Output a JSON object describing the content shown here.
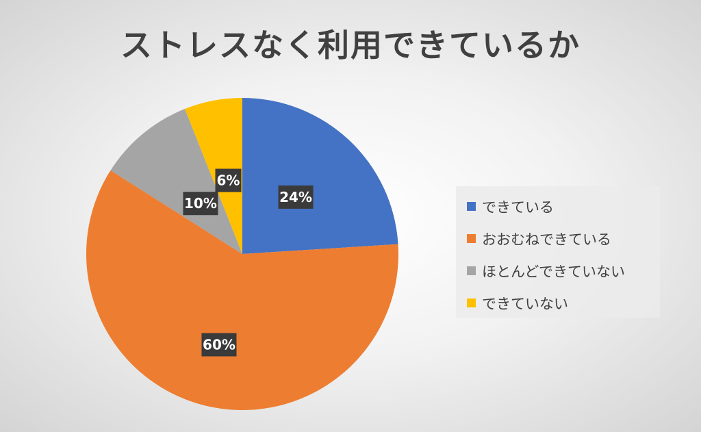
{
  "chart_data": {
    "type": "pie",
    "title": "ストレスなく利用できているか",
    "start_angle_deg": 0,
    "direction": "clockwise",
    "legend_position": "right",
    "slices": [
      {
        "label": "できている",
        "value": 24,
        "value_label": "24%",
        "color": "#4472C4"
      },
      {
        "label": "おおむねできている",
        "value": 60,
        "value_label": "60%",
        "color": "#ED7D31"
      },
      {
        "label": "ほとんどできていない",
        "value": 10,
        "value_label": "10%",
        "color": "#A5A5A5"
      },
      {
        "label": "できていない",
        "value": 6,
        "value_label": "6%",
        "color": "#FFC000"
      }
    ]
  }
}
